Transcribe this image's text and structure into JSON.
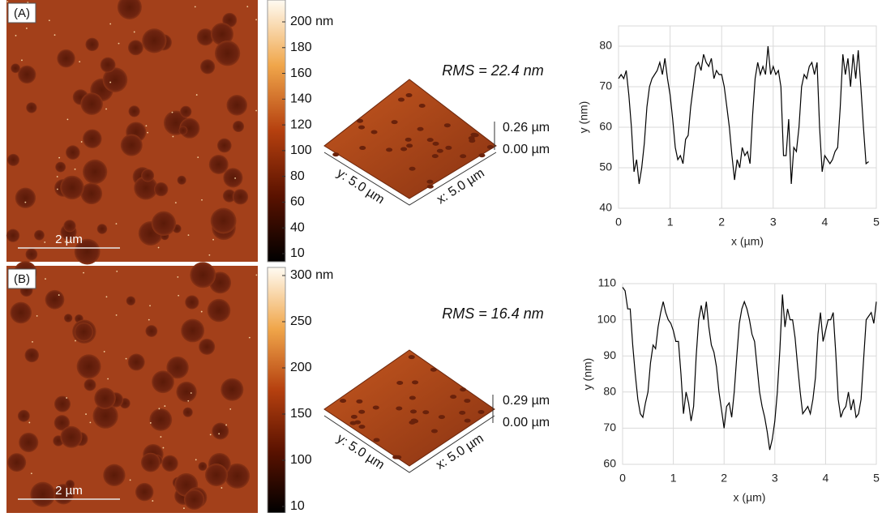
{
  "panels": [
    {
      "label": "(A)",
      "scale_bar": "2 µm",
      "colorbar_ticks": [
        {
          "value": 200,
          "label": "200 nm"
        },
        180,
        160,
        140,
        120,
        100,
        80,
        60,
        40,
        10
      ],
      "rms": "RMS = 22.4 nm",
      "height_max": "0.26 µm",
      "height_min": "0.00 µm",
      "axis_y": "y: 5.0 µm",
      "axis_x": "x: 5.0 µm"
    },
    {
      "label": "(B)",
      "scale_bar": "2 µm",
      "colorbar_ticks": [
        {
          "value": 300,
          "label": "300 nm"
        },
        250,
        200,
        150,
        100,
        10
      ],
      "rms": "RMS = 16.4 nm",
      "height_max": "0.29 µm",
      "height_min": "0.00 µm",
      "axis_y": "y: 5.0 µm",
      "axis_x": "x: 5.0 µm"
    }
  ],
  "chart_data": [
    {
      "type": "line",
      "x_label": "x (µm)",
      "y_label": "y (nm)",
      "color": "#000000",
      "grid": true,
      "xlim": [
        0,
        5
      ],
      "xticks": [
        0,
        1,
        2,
        3,
        4,
        5
      ],
      "ylim": [
        40,
        85
      ],
      "yticks": [
        40,
        50,
        60,
        70,
        80
      ],
      "x": [
        0,
        0.05,
        0.1,
        0.15,
        0.2,
        0.25,
        0.3,
        0.35,
        0.4,
        0.45,
        0.5,
        0.55,
        0.6,
        0.65,
        0.7,
        0.75,
        0.8,
        0.85,
        0.9,
        0.95,
        1.0,
        1.05,
        1.1,
        1.15,
        1.2,
        1.25,
        1.3,
        1.35,
        1.4,
        1.45,
        1.5,
        1.55,
        1.6,
        1.65,
        1.7,
        1.75,
        1.8,
        1.85,
        1.9,
        1.95,
        2.0,
        2.05,
        2.1,
        2.15,
        2.2,
        2.25,
        2.3,
        2.35,
        2.4,
        2.45,
        2.5,
        2.55,
        2.6,
        2.65,
        2.7,
        2.75,
        2.8,
        2.85,
        2.9,
        2.95,
        3.0,
        3.05,
        3.1,
        3.15,
        3.2,
        3.25,
        3.3,
        3.35,
        3.4,
        3.45,
        3.5,
        3.55,
        3.6,
        3.65,
        3.7,
        3.75,
        3.8,
        3.85,
        3.9,
        3.95,
        4.0,
        4.05,
        4.1,
        4.15,
        4.2,
        4.25,
        4.3,
        4.35,
        4.4,
        4.45,
        4.5,
        4.55,
        4.6,
        4.65,
        4.7,
        4.75,
        4.8,
        4.85
      ],
      "values": [
        72,
        73,
        72,
        74,
        68,
        60,
        49,
        52,
        46,
        50,
        56,
        65,
        70,
        72,
        73,
        74,
        76,
        73,
        77,
        72,
        68,
        62,
        55,
        52,
        53,
        51,
        57,
        58,
        65,
        70,
        75,
        76,
        74,
        78,
        76,
        75,
        77,
        72,
        74,
        73,
        73,
        70,
        65,
        60,
        53,
        47,
        52,
        50,
        55,
        53,
        54,
        51,
        63,
        72,
        76,
        73,
        75,
        73,
        80,
        73,
        75,
        73,
        74,
        70,
        53,
        53,
        62,
        46,
        55,
        54,
        60,
        70,
        73,
        72,
        75,
        76,
        73,
        76,
        60,
        49,
        53,
        52,
        51,
        52,
        54,
        55,
        65,
        78,
        73,
        77,
        70,
        78,
        72,
        79,
        70,
        60,
        51,
        51.5
      ]
    },
    {
      "type": "line",
      "x_label": "x (µm)",
      "y_label": "y (nm)",
      "color": "#000000",
      "grid": true,
      "xlim": [
        0,
        5
      ],
      "xticks": [
        0,
        1,
        2,
        3,
        4,
        5
      ],
      "ylim": [
        60,
        110
      ],
      "yticks": [
        60,
        70,
        80,
        90,
        100,
        110
      ],
      "x": [
        0,
        0.05,
        0.1,
        0.15,
        0.2,
        0.25,
        0.3,
        0.35,
        0.4,
        0.45,
        0.5,
        0.55,
        0.6,
        0.65,
        0.7,
        0.75,
        0.8,
        0.85,
        0.9,
        0.95,
        1.0,
        1.05,
        1.1,
        1.15,
        1.2,
        1.25,
        1.3,
        1.35,
        1.4,
        1.45,
        1.5,
        1.55,
        1.6,
        1.65,
        1.7,
        1.75,
        1.8,
        1.85,
        1.9,
        1.95,
        2.0,
        2.05,
        2.1,
        2.15,
        2.2,
        2.25,
        2.3,
        2.35,
        2.4,
        2.45,
        2.5,
        2.55,
        2.6,
        2.65,
        2.7,
        2.75,
        2.8,
        2.85,
        2.9,
        2.95,
        3.0,
        3.05,
        3.1,
        3.15,
        3.2,
        3.25,
        3.3,
        3.35,
        3.4,
        3.45,
        3.5,
        3.55,
        3.6,
        3.65,
        3.7,
        3.75,
        3.8,
        3.85,
        3.9,
        3.95,
        4.0,
        4.05,
        4.1,
        4.15,
        4.2,
        4.25,
        4.3,
        4.35,
        4.4,
        4.45,
        4.5,
        4.55,
        4.6,
        4.65,
        4.7,
        4.75,
        4.8,
        4.85,
        4.9,
        4.95,
        5.0
      ],
      "values": [
        109,
        108,
        103,
        103,
        93,
        85,
        78,
        74,
        73,
        77,
        80,
        88,
        93,
        92,
        98,
        102,
        105,
        102,
        100,
        99,
        97,
        94,
        94,
        85,
        74,
        80,
        77,
        72,
        76,
        90,
        100,
        104,
        100,
        105,
        98,
        93,
        91,
        87,
        80,
        75,
        70,
        76,
        77,
        73,
        80,
        90,
        99,
        103,
        105,
        103,
        100,
        96,
        94,
        87,
        80,
        76,
        73,
        69,
        64,
        67,
        72,
        80,
        92,
        107,
        98,
        103,
        100,
        100,
        95,
        87,
        80,
        74,
        75,
        76,
        74,
        78,
        84,
        96,
        102,
        94,
        97,
        100,
        100,
        102,
        91,
        78,
        73,
        75,
        76,
        80,
        75,
        78,
        73,
        74,
        78,
        89,
        100,
        101,
        102,
        99,
        105
      ]
    }
  ]
}
